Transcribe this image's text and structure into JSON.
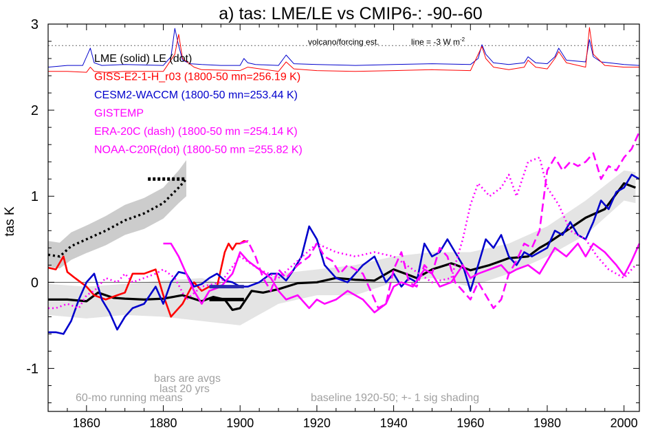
{
  "chart_data": {
    "type": "line",
    "title": "a) tas: LME/LE vs CMIP6-: -90--60",
    "ylabel": "tas K",
    "xlabel": "",
    "xlim": [
      1850,
      2004
    ],
    "ylim": [
      -1.5,
      3.0
    ],
    "x_ticks": [
      {
        "v": 1860,
        "label": "1860"
      },
      {
        "v": 1880,
        "label": "1880"
      },
      {
        "v": 1900,
        "label": "1900"
      },
      {
        "v": 1920,
        "label": "1920"
      },
      {
        "v": 1940,
        "label": "1940"
      },
      {
        "v": 1960,
        "label": "1960"
      },
      {
        "v": 1980,
        "label": "1980"
      },
      {
        "v": 2000,
        "label": "2000"
      }
    ],
    "y_ticks": [
      {
        "v": -1,
        "label": "-1"
      },
      {
        "v": 0,
        "label": "0"
      },
      {
        "v": 1,
        "label": "1"
      },
      {
        "v": 2,
        "label": "2"
      },
      {
        "v": 3,
        "label": "3"
      }
    ],
    "legend": {
      "placement": "top-left",
      "entries": [
        {
          "text": "LME (solid)   LE (dot)",
          "color": "#000000"
        },
        {
          "text": "GISS-E2-1-H_r03 (1800-50 mn=256.19 K)",
          "color": "#ff0000"
        },
        {
          "text": "CESM2-WACCM (1800-50 mn=253.44 K)",
          "color": "#0000cc"
        },
        {
          "text": "GISTEMP",
          "color": "#ff00ff"
        },
        {
          "text": "ERA-20C (dash) (1800-50 mn =254.14 K)",
          "color": "#ff00ff"
        },
        {
          "text": "NOAA-C20R(dot) (1800-50 mn =255.82 K)",
          "color": "#ff00ff"
        }
      ]
    },
    "annotations": {
      "volcano": "volcano/forcing est.",
      "line_note": "line = -3 W m",
      "line_note_sup": "-2",
      "bars": "bars are avgs",
      "last20": "last 20 yrs",
      "running": "60-mo running means",
      "baseline": "baseline 1920-50; +- 1 sig shading"
    },
    "colors": {
      "lme": "#000000",
      "giss": "#ff0000",
      "cesm": "#0000cc",
      "obs": "#ff00ff",
      "shade": "#cccccc",
      "shade_light": "#e4e4e4",
      "annotation": "#a0a0a0"
    },
    "reference_line_y": 2.75,
    "series": [
      {
        "name": "LME (solid)",
        "style": "solid-thick",
        "color": "#000000",
        "x": [
          1850,
          1855,
          1860,
          1863,
          1867,
          1870,
          1875,
          1880,
          1885,
          1890,
          1893,
          1896,
          1898,
          1900,
          1903,
          1906,
          1910,
          1915,
          1920,
          1925,
          1930,
          1935,
          1940,
          1943,
          1946,
          1950,
          1955,
          1960,
          1965,
          1970,
          1975,
          1978,
          1980,
          1985,
          1990,
          1995,
          2000,
          2003
        ],
        "y": [
          -0.2,
          -0.2,
          -0.22,
          -0.12,
          -0.18,
          -0.19,
          -0.2,
          -0.19,
          -0.15,
          -0.22,
          -0.17,
          -0.2,
          -0.32,
          -0.3,
          -0.1,
          -0.12,
          -0.08,
          -0.01,
          0.0,
          0.05,
          0.03,
          0.02,
          0.15,
          0.1,
          0.05,
          0.15,
          0.22,
          0.14,
          0.2,
          0.28,
          0.3,
          0.4,
          0.45,
          0.6,
          0.75,
          0.85,
          1.15,
          1.1
        ]
      },
      {
        "name": "LE (dot)",
        "style": "dotted-thick",
        "color": "#000000",
        "x": [
          1850,
          1853,
          1856,
          1860,
          1865,
          1870,
          1875,
          1880,
          1884,
          1886
        ],
        "y": [
          0.32,
          0.3,
          0.42,
          0.5,
          0.6,
          0.72,
          0.8,
          0.92,
          1.1,
          1.2
        ]
      },
      {
        "name": "LE shading",
        "style": "band",
        "color": "#cccccc",
        "x": [
          1850,
          1853,
          1856,
          1860,
          1865,
          1870,
          1875,
          1880,
          1884,
          1886
        ],
        "upper": [
          0.48,
          0.46,
          0.58,
          0.66,
          0.77,
          0.9,
          0.98,
          1.1,
          1.3,
          1.42
        ],
        "lower": [
          0.18,
          0.16,
          0.26,
          0.34,
          0.43,
          0.55,
          0.62,
          0.74,
          0.92,
          1.0
        ]
      },
      {
        "name": "LME shading",
        "style": "band",
        "color": "#e4e4e4",
        "x": [
          1850,
          1860,
          1870,
          1880,
          1890,
          1900,
          1910,
          1920,
          1930,
          1940,
          1950,
          1960,
          1970,
          1980,
          1990,
          2000,
          2003
        ],
        "upper": [
          -0.02,
          -0.05,
          -0.02,
          0.02,
          0.05,
          -0.08,
          0.1,
          0.15,
          0.2,
          0.3,
          0.35,
          0.35,
          0.45,
          0.65,
          0.95,
          1.3,
          1.28
        ],
        "lower": [
          -0.38,
          -0.42,
          -0.38,
          -0.4,
          -0.45,
          -0.5,
          -0.25,
          -0.15,
          -0.15,
          0.0,
          0.05,
          -0.05,
          0.1,
          0.3,
          0.55,
          0.95,
          0.92
        ]
      },
      {
        "name": "GISS-E2-1-H_r03",
        "style": "solid",
        "color": "#ff0000",
        "x": [
          1850,
          1852,
          1854,
          1855,
          1857,
          1860,
          1862,
          1865,
          1868,
          1870,
          1872,
          1875,
          1878,
          1880,
          1882,
          1885,
          1888,
          1890,
          1892,
          1894,
          1896,
          1897,
          1898,
          1899,
          1900,
          1901,
          1902
        ],
        "y": [
          0.17,
          0.15,
          0.3,
          0.12,
          0.05,
          -0.05,
          -0.15,
          -0.2,
          -0.15,
          -0.12,
          0.1,
          0.1,
          0.15,
          -0.15,
          -0.4,
          -0.25,
          0.0,
          -0.1,
          -0.05,
          -0.05,
          0.35,
          0.45,
          0.38,
          0.45,
          0.45,
          0.48,
          0.47
        ]
      },
      {
        "name": "CESM2-WACCM",
        "style": "solid",
        "color": "#0000cc",
        "x": [
          1850,
          1852,
          1854,
          1856,
          1858,
          1860,
          1862,
          1864,
          1866,
          1868,
          1870,
          1872,
          1875,
          1878,
          1880,
          1882,
          1884,
          1886,
          1888,
          1890,
          1892,
          1894,
          1896,
          1898,
          1900,
          1902,
          1905,
          1908,
          1910,
          1912,
          1914,
          1916,
          1918,
          1920,
          1922,
          1925,
          1928,
          1930,
          1932,
          1935,
          1938,
          1940,
          1942,
          1944,
          1946,
          1948,
          1950,
          1952,
          1954,
          1956,
          1958,
          1960,
          1962,
          1964,
          1966,
          1968,
          1970,
          1972,
          1974,
          1976,
          1978,
          1980,
          1982,
          1984,
          1986,
          1988,
          1990,
          1992,
          1994,
          1996,
          1998,
          2000,
          2002,
          2004
        ],
        "y": [
          -0.58,
          -0.58,
          -0.6,
          -0.45,
          -0.2,
          0.0,
          0.1,
          -0.2,
          -0.35,
          -0.55,
          -0.4,
          -0.3,
          -0.25,
          -0.05,
          -0.25,
          0.0,
          0.12,
          0.1,
          -0.05,
          -0.02,
          0.05,
          0.1,
          0.02,
          0.0,
          -0.05,
          -0.05,
          0.0,
          0.1,
          0.1,
          0.02,
          0.15,
          0.3,
          0.65,
          0.5,
          0.2,
          0.05,
          0.0,
          0.1,
          0.2,
          0.3,
          0.0,
          0.1,
          -0.05,
          0.05,
          0.0,
          0.45,
          0.3,
          0.35,
          0.5,
          0.35,
          0.2,
          -0.1,
          0.2,
          0.5,
          0.4,
          0.55,
          0.3,
          0.2,
          0.35,
          0.3,
          0.35,
          0.4,
          0.6,
          0.55,
          0.7,
          0.55,
          0.5,
          0.7,
          0.95,
          0.85,
          1.05,
          1.1,
          1.25,
          1.2
        ]
      },
      {
        "name": "GISTEMP",
        "style": "solid",
        "color": "#ff00ff",
        "x": [
          1880,
          1882,
          1884,
          1886,
          1888,
          1890,
          1892,
          1895,
          1898,
          1900,
          1902,
          1905,
          1908,
          1910,
          1912,
          1915,
          1918,
          1920,
          1922,
          1925,
          1928,
          1930,
          1932,
          1935,
          1938,
          1940,
          1942,
          1945,
          1948,
          1950,
          1952,
          1955,
          1958,
          1960,
          1962,
          1965,
          1968,
          1970,
          1972,
          1975,
          1978,
          1980,
          1982,
          1985,
          1988,
          1990,
          1992,
          1995,
          1998,
          2000,
          2002,
          2004
        ],
        "y": [
          0.45,
          0.45,
          0.3,
          0.1,
          -0.1,
          -0.25,
          -0.1,
          -0.05,
          0.1,
          0.35,
          0.25,
          0.15,
          0.05,
          -0.1,
          -0.2,
          -0.15,
          -0.3,
          -0.2,
          -0.25,
          -0.2,
          -0.1,
          -0.15,
          -0.2,
          -0.35,
          -0.25,
          -0.05,
          0.0,
          -0.05,
          0.15,
          0.1,
          -0.05,
          0.0,
          0.2,
          0.05,
          0.1,
          0.15,
          0.2,
          0.1,
          0.15,
          0.2,
          0.1,
          0.25,
          0.4,
          0.3,
          0.45,
          0.3,
          0.45,
          0.35,
          0.2,
          0.08,
          0.25,
          0.45
        ]
      },
      {
        "name": "ERA-20C",
        "style": "dashed",
        "color": "#ff00ff",
        "x": [
          1900,
          1902,
          1904,
          1906,
          1908,
          1910,
          1912,
          1915,
          1918,
          1920,
          1922,
          1924,
          1926,
          1928,
          1930,
          1932,
          1934,
          1936,
          1938,
          1940,
          1942,
          1944,
          1946,
          1948,
          1950,
          1952,
          1954,
          1956,
          1958,
          1960,
          1962,
          1964,
          1966,
          1968,
          1970,
          1972,
          1974,
          1976,
          1978,
          1980,
          1982,
          1984,
          1986,
          1988,
          1990,
          1992,
          1994,
          1996,
          1998,
          2000,
          2002,
          2004
        ],
        "y": [
          0.45,
          0.48,
          0.3,
          0.05,
          -0.1,
          0.15,
          0.05,
          0.2,
          0.3,
          0.45,
          0.3,
          0.25,
          0.1,
          0.2,
          0.15,
          0.1,
          -0.1,
          -0.3,
          -0.25,
          0.15,
          0.35,
          0.0,
          -0.05,
          0.2,
          0.1,
          0.4,
          0.3,
          0.0,
          -0.1,
          -0.2,
          0.0,
          -0.15,
          -0.3,
          -0.2,
          0.1,
          0.25,
          0.45,
          0.4,
          0.6,
          1.3,
          1.45,
          1.3,
          1.4,
          1.35,
          1.4,
          1.5,
          1.2,
          1.35,
          1.3,
          1.45,
          1.55,
          1.75
        ]
      },
      {
        "name": "NOAA-C20R",
        "style": "dotted",
        "color": "#ff00ff",
        "x": [
          1850,
          1852,
          1855,
          1858,
          1860,
          1862,
          1865,
          1868,
          1870,
          1872,
          1875,
          1878,
          1880,
          1883,
          1886,
          1890,
          1895,
          1900,
          1905,
          1910,
          1915,
          1920,
          1925,
          1930,
          1935,
          1940,
          1945,
          1950,
          1955,
          1958,
          1960,
          1962,
          1965,
          1968,
          1970,
          1972,
          1975,
          1978,
          1980,
          1983,
          1986,
          1990,
          1993,
          1996,
          2000,
          2003
        ],
        "y": [
          -0.3,
          -0.3,
          -0.25,
          -0.3,
          -0.15,
          -0.1,
          0.05,
          0.0,
          0.1,
          0.0,
          0.05,
          0.1,
          0.15,
          0.05,
          -0.2,
          -0.05,
          0.0,
          0.3,
          0.15,
          0.05,
          0.25,
          0.45,
          0.35,
          0.3,
          0.35,
          0.3,
          0.15,
          0.0,
          0.05,
          0.5,
          0.9,
          1.15,
          1.0,
          1.1,
          1.25,
          1.0,
          1.4,
          1.45,
          1.1,
          0.9,
          0.6,
          0.5,
          0.3,
          0.15,
          0.05,
          0.2
        ]
      },
      {
        "name": "volcano forcing CESM",
        "style": "solid-thin",
        "color": "#0000cc",
        "x": [
          1850,
          1855,
          1859,
          1861,
          1862,
          1864,
          1870,
          1880,
          1882,
          1883,
          1884,
          1885,
          1887,
          1890,
          1895,
          1900,
          1901,
          1902,
          1904,
          1910,
          1912,
          1914,
          1920,
          1930,
          1940,
          1950,
          1960,
          1962,
          1963,
          1964,
          1966,
          1970,
          1974,
          1975,
          1977,
          1980,
          1982,
          1983,
          1985,
          1990,
          1991,
          1992,
          1994,
          2000,
          2004
        ],
        "y": [
          2.5,
          2.52,
          2.52,
          2.72,
          2.55,
          2.52,
          2.53,
          2.52,
          2.62,
          2.95,
          2.75,
          2.58,
          2.54,
          2.53,
          2.52,
          2.52,
          2.6,
          2.55,
          2.53,
          2.52,
          2.64,
          2.54,
          2.53,
          2.52,
          2.53,
          2.54,
          2.53,
          2.6,
          2.76,
          2.65,
          2.55,
          2.53,
          2.55,
          2.62,
          2.55,
          2.54,
          2.62,
          2.72,
          2.58,
          2.56,
          2.82,
          2.62,
          2.56,
          2.53,
          2.52
        ]
      },
      {
        "name": "volcano forcing GISS",
        "style": "solid-thin",
        "color": "#ff0000",
        "x": [
          1850,
          1855,
          1860,
          1861,
          1862,
          1865,
          1870,
          1880,
          1883,
          1884,
          1885,
          1888,
          1890,
          1900,
          1902,
          1910,
          1912,
          1914,
          1920,
          1930,
          1940,
          1950,
          1960,
          1963,
          1964,
          1966,
          1970,
          1974,
          1975,
          1977,
          1980,
          1982,
          1983,
          1985,
          1990,
          1991,
          1992,
          1995,
          2000,
          2004
        ],
        "y": [
          2.45,
          2.45,
          2.44,
          2.5,
          2.45,
          2.44,
          2.45,
          2.45,
          2.65,
          2.88,
          2.6,
          2.5,
          2.47,
          2.46,
          2.5,
          2.45,
          2.56,
          2.48,
          2.46,
          2.45,
          2.46,
          2.47,
          2.46,
          2.74,
          2.6,
          2.5,
          2.47,
          2.5,
          2.58,
          2.5,
          2.48,
          2.6,
          2.68,
          2.55,
          2.5,
          2.96,
          2.65,
          2.52,
          2.5,
          2.5
        ]
      }
    ],
    "avg_bars": [
      {
        "name": "CESM 20-yr avg",
        "x0": 1892,
        "x1": 1901,
        "y": -0.05,
        "color": "#2a2ab0"
      },
      {
        "name": "LME 20-yr avg",
        "x0": 1892,
        "x1": 1901,
        "y": -0.2,
        "color": "#000000"
      },
      {
        "name": "LE 20-yr avg",
        "x0": 1876,
        "x1": 1886,
        "y": 1.2,
        "color": "#000000",
        "dotted": true
      }
    ]
  }
}
